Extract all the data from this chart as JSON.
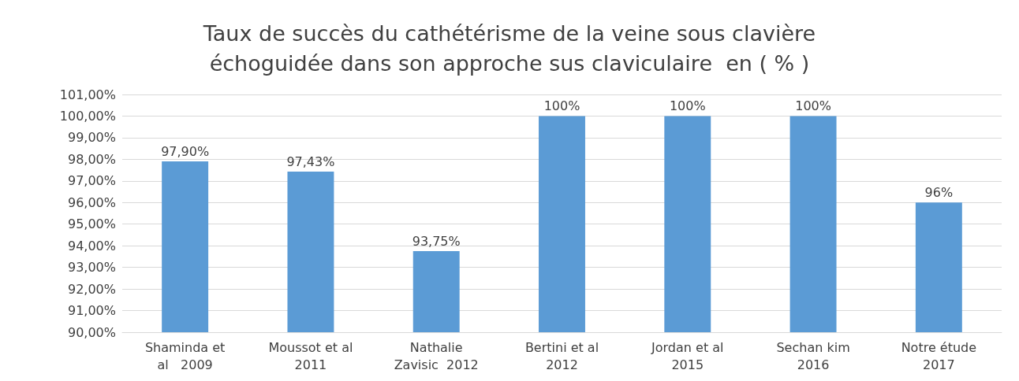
{
  "chart_data": {
    "type": "bar",
    "title": "Taux de succès du cathétérisme de la veine sous clavière\néchoguidée dans son approche sus claviculaire  en ( % )",
    "categories": [
      "Shaminda et\nal   2009",
      "Moussot et al\n2011",
      "Nathalie\nZavisic  2012",
      "Bertini et al\n2012",
      "Jordan et al\n2015",
      "Sechan kim\n2016",
      "Notre étude\n2017"
    ],
    "values": [
      97.9,
      97.43,
      93.75,
      100,
      100,
      100,
      96
    ],
    "value_labels": [
      "97,90%",
      "97,43%",
      "93,75%",
      "100%",
      "100%",
      "100%",
      "96%"
    ],
    "color": "#5b9bd5",
    "ylim": [
      90,
      101
    ],
    "yticks": [
      {
        "value": 90,
        "label": "90,00%"
      },
      {
        "value": 91,
        "label": "91,00%"
      },
      {
        "value": 92,
        "label": "92,00%"
      },
      {
        "value": 93,
        "label": "93,00%"
      },
      {
        "value": 94,
        "label": "94,00%"
      },
      {
        "value": 95,
        "label": "95,00%"
      },
      {
        "value": 96,
        "label": "96,00%"
      },
      {
        "value": 97,
        "label": "97,00%"
      },
      {
        "value": 98,
        "label": "98,00%"
      },
      {
        "value": 99,
        "label": "99,00%"
      },
      {
        "value": 100,
        "label": "100,00%"
      },
      {
        "value": 101,
        "label": "101,00%"
      }
    ],
    "grid": "y"
  }
}
